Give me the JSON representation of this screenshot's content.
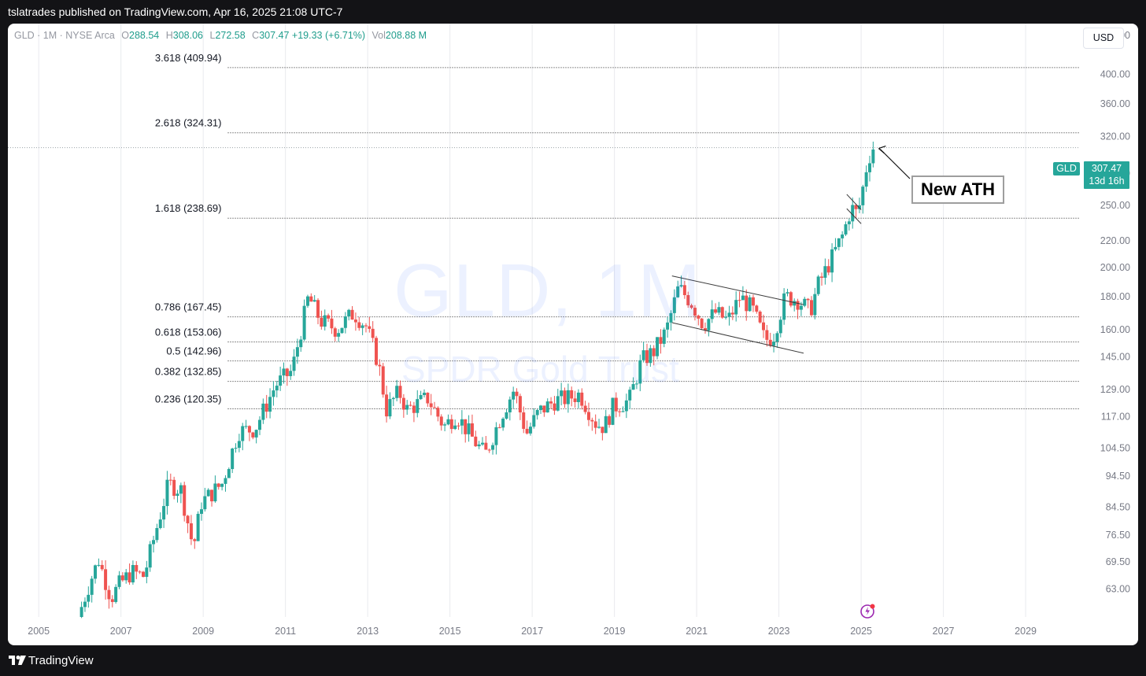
{
  "header": {
    "published": "tslatrades published on TradingView.com, Apr 16, 2025 21:08 UTC-7"
  },
  "legend": {
    "symbol": "GLD · 1M · NYSE Arca",
    "o_label": "O",
    "o": "288.54",
    "h_label": "H",
    "h": "308.06",
    "l_label": "L",
    "l": "272.58",
    "c_label": "C",
    "c": "307.47",
    "change": "+19.33 (+6.71%)",
    "vol_label": "Vol",
    "vol": "208.88 M"
  },
  "currency": "USD",
  "watermark": {
    "main": "GLD, 1M",
    "sub": "SPDR Gold Trust"
  },
  "annotation": "New ATH",
  "price_tag": {
    "symbol": "GLD",
    "price": "307.47",
    "countdown": "13d 16h"
  },
  "footer": {
    "brand": "TradingView"
  },
  "colors": {
    "up": "#26a69a",
    "down": "#ef5350",
    "background": "#ffffff",
    "frame": "#131316"
  },
  "chart_data": {
    "type": "candlestick",
    "scale": "log",
    "ylim": [
      57,
      480
    ],
    "xlim": [
      2004.25,
      2030.3
    ],
    "x_ticks": [
      "2005",
      "2007",
      "2009",
      "2011",
      "2013",
      "2015",
      "2017",
      "2019",
      "2021",
      "2023",
      "2025",
      "2027",
      "2029"
    ],
    "y_ticks": [
      "460.00",
      "400.00",
      "360.00",
      "320.00",
      "280.00",
      "250.00",
      "220.00",
      "200.00",
      "180.00",
      "160.00",
      "145.00",
      "129.00",
      "117.00",
      "104.50",
      "94.50",
      "84.50",
      "76.50",
      "69.50",
      "63.00"
    ],
    "current_price": 307.47,
    "fib_levels": [
      {
        "label": "3.618 (409.94)",
        "value": 409.94
      },
      {
        "label": "2.618 (324.31)",
        "value": 324.31
      },
      {
        "label": "1.618 (238.69)",
        "value": 238.69
      },
      {
        "label": "0.786 (167.45)",
        "value": 167.45
      },
      {
        "label": "0.618 (153.06)",
        "value": 153.06
      },
      {
        "label": "0.5 (142.96)",
        "value": 142.96
      },
      {
        "label": "0.382 (132.85)",
        "value": 132.85
      },
      {
        "label": "0.236 (120.35)",
        "value": 120.35
      }
    ],
    "trendlines": [
      {
        "from": [
          2020.4,
          194
        ],
        "to": [
          2023.6,
          175
        ]
      },
      {
        "from": [
          2020.4,
          164
        ],
        "to": [
          2023.6,
          147
        ]
      },
      {
        "from": [
          2024.65,
          260
        ],
        "to": [
          2025.0,
          246
        ]
      },
      {
        "from": [
          2024.65,
          247
        ],
        "to": [
          2025.0,
          234
        ]
      }
    ],
    "price_path": [
      [
        2006.0,
        57
      ],
      [
        2006.3,
        65
      ],
      [
        2006.5,
        70
      ],
      [
        2006.8,
        61
      ],
      [
        2007.0,
        64
      ],
      [
        2007.3,
        67
      ],
      [
        2007.6,
        66
      ],
      [
        2007.9,
        78
      ],
      [
        2008.2,
        92
      ],
      [
        2008.5,
        90
      ],
      [
        2008.8,
        73
      ],
      [
        2009.0,
        86
      ],
      [
        2009.5,
        92
      ],
      [
        2009.9,
        111
      ],
      [
        2010.3,
        112
      ],
      [
        2010.8,
        131
      ],
      [
        2011.2,
        138
      ],
      [
        2011.6,
        180
      ],
      [
        2011.9,
        165
      ],
      [
        2012.3,
        160
      ],
      [
        2012.7,
        170
      ],
      [
        2013.0,
        162
      ],
      [
        2013.3,
        142
      ],
      [
        2013.5,
        120
      ],
      [
        2013.8,
        128
      ],
      [
        2014.0,
        120
      ],
      [
        2014.5,
        125
      ],
      [
        2014.9,
        113
      ],
      [
        2015.2,
        118
      ],
      [
        2015.6,
        108
      ],
      [
        2015.9,
        102
      ],
      [
        2016.3,
        118
      ],
      [
        2016.6,
        129
      ],
      [
        2016.9,
        110
      ],
      [
        2017.2,
        119
      ],
      [
        2017.6,
        124
      ],
      [
        2017.9,
        125
      ],
      [
        2018.2,
        127
      ],
      [
        2018.6,
        114
      ],
      [
        2018.8,
        113
      ],
      [
        2019.0,
        121
      ],
      [
        2019.4,
        124
      ],
      [
        2019.7,
        143
      ],
      [
        2020.0,
        148
      ],
      [
        2020.3,
        159
      ],
      [
        2020.6,
        186
      ],
      [
        2020.9,
        177
      ],
      [
        2021.2,
        163
      ],
      [
        2021.5,
        170
      ],
      [
        2021.8,
        165
      ],
      [
        2022.1,
        180
      ],
      [
        2022.4,
        172
      ],
      [
        2022.7,
        154
      ],
      [
        2022.9,
        156
      ],
      [
        2023.2,
        180
      ],
      [
        2023.5,
        178
      ],
      [
        2023.8,
        171
      ],
      [
        2024.0,
        188
      ],
      [
        2024.3,
        205
      ],
      [
        2024.6,
        225
      ],
      [
        2024.8,
        248
      ],
      [
        2024.95,
        242
      ],
      [
        2025.05,
        258
      ],
      [
        2025.15,
        283
      ],
      [
        2025.3,
        307.47
      ]
    ]
  }
}
